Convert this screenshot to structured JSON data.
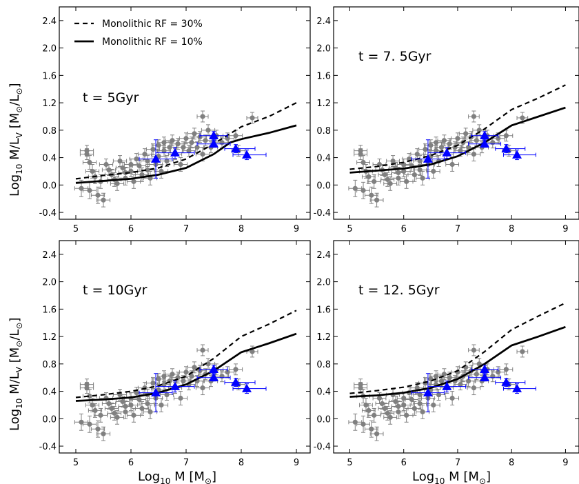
{
  "chart_data": [
    {
      "type": "scatter",
      "annotation": "t = 5Gyr",
      "xlim": [
        4.7,
        9.25
      ],
      "ylim": [
        -0.5,
        2.6
      ],
      "xticks": [
        "5",
        "6",
        "7",
        "8",
        "9"
      ],
      "yticks": [
        "-0.4",
        "0.0",
        "0.4",
        "0.8",
        "1.2",
        "1.6",
        "2.0",
        "2.4"
      ],
      "series": [
        {
          "name": "Monolithic RF = 30%",
          "style": "dashed",
          "color": "#000000",
          "x": [
            5.0,
            5.5,
            6.0,
            6.5,
            7.0,
            7.5,
            8.0,
            8.5,
            9.0
          ],
          "y": [
            0.09,
            0.14,
            0.18,
            0.25,
            0.38,
            0.6,
            0.85,
            1.0,
            1.2
          ]
        },
        {
          "name": "Monolithic RF = 10%",
          "style": "solid",
          "color": "#000000",
          "x": [
            5.0,
            5.5,
            6.0,
            6.5,
            7.0,
            7.5,
            7.8,
            8.0,
            8.5,
            9.0
          ],
          "y": [
            0.03,
            0.06,
            0.09,
            0.15,
            0.25,
            0.45,
            0.62,
            0.67,
            0.76,
            0.87
          ]
        }
      ]
    },
    {
      "type": "scatter",
      "annotation": "t = 7. 5Gyr",
      "xlim": [
        4.7,
        9.25
      ],
      "ylim": [
        -0.5,
        2.6
      ],
      "xticks": [
        "5",
        "6",
        "7",
        "8",
        "9"
      ],
      "yticks": [
        "-0.4",
        "0.0",
        "0.4",
        "0.8",
        "1.2",
        "1.6",
        "2.0",
        "2.4"
      ],
      "series": [
        {
          "name": "Monolithic RF = 30%",
          "style": "dashed",
          "color": "#000000",
          "x": [
            5.0,
            5.5,
            6.0,
            6.5,
            7.0,
            7.5,
            8.0,
            8.5,
            9.0
          ],
          "y": [
            0.23,
            0.27,
            0.33,
            0.43,
            0.58,
            0.82,
            1.1,
            1.27,
            1.46
          ]
        },
        {
          "name": "Monolithic RF = 10%",
          "style": "solid",
          "color": "#000000",
          "x": [
            5.0,
            5.5,
            6.0,
            6.5,
            7.0,
            7.5,
            8.0,
            8.5,
            9.0
          ],
          "y": [
            0.18,
            0.21,
            0.24,
            0.3,
            0.42,
            0.62,
            0.87,
            1.0,
            1.13
          ]
        }
      ]
    },
    {
      "type": "scatter",
      "annotation": "t = 10Gyr",
      "xlim": [
        4.7,
        9.25
      ],
      "ylim": [
        -0.5,
        2.6
      ],
      "xticks": [
        "5",
        "6",
        "7",
        "8",
        "9"
      ],
      "yticks": [
        "-0.4",
        "0.0",
        "0.4",
        "0.8",
        "1.2",
        "1.6",
        "2.0",
        "2.4"
      ],
      "series": [
        {
          "name": "Monolithic RF = 30%",
          "style": "dashed",
          "color": "#000000",
          "x": [
            5.0,
            5.5,
            6.0,
            6.5,
            7.0,
            7.5,
            8.0,
            8.5,
            9.0
          ],
          "y": [
            0.31,
            0.35,
            0.4,
            0.48,
            0.62,
            0.88,
            1.2,
            1.38,
            1.58
          ]
        },
        {
          "name": "Monolithic RF = 10%",
          "style": "solid",
          "color": "#000000",
          "x": [
            5.0,
            5.5,
            6.0,
            6.5,
            7.0,
            7.5,
            8.0,
            8.5,
            9.0
          ],
          "y": [
            0.26,
            0.28,
            0.31,
            0.38,
            0.5,
            0.7,
            0.97,
            1.1,
            1.24
          ]
        }
      ]
    },
    {
      "type": "scatter",
      "annotation": "t = 12. 5Gyr",
      "xlim": [
        4.7,
        9.25
      ],
      "ylim": [
        -0.5,
        2.6
      ],
      "xticks": [
        "5",
        "6",
        "7",
        "8",
        "9"
      ],
      "yticks": [
        "-0.4",
        "0.0",
        "0.4",
        "0.8",
        "1.2",
        "1.6",
        "2.0",
        "2.4"
      ],
      "series": [
        {
          "name": "Monolithic RF = 30%",
          "style": "dashed",
          "color": "#000000",
          "x": [
            5.0,
            5.5,
            6.0,
            6.5,
            7.0,
            7.5,
            8.0,
            8.5,
            9.0
          ],
          "y": [
            0.37,
            0.41,
            0.46,
            0.55,
            0.7,
            0.98,
            1.3,
            1.5,
            1.69
          ]
        },
        {
          "name": "Monolithic RF = 10%",
          "style": "solid",
          "color": "#000000",
          "x": [
            5.0,
            5.5,
            6.0,
            6.5,
            7.0,
            7.5,
            8.0,
            8.5,
            9.0
          ],
          "y": [
            0.32,
            0.34,
            0.38,
            0.45,
            0.58,
            0.8,
            1.07,
            1.2,
            1.34
          ]
        }
      ]
    }
  ],
  "observations": {
    "gray_color": "#808080",
    "blue_color": "#0000ff",
    "gray_points": [
      {
        "x": 5.2,
        "y": 0.5,
        "xerr": 0.12,
        "yerr": 0.08
      },
      {
        "x": 5.2,
        "y": 0.45,
        "xerr": 0.12,
        "yerr": 0.08
      },
      {
        "x": 5.25,
        "y": 0.33,
        "xerr": 0.12,
        "yerr": 0.1
      },
      {
        "x": 5.3,
        "y": 0.2,
        "xerr": 0.12,
        "yerr": 0.1
      },
      {
        "x": 5.35,
        "y": 0.12,
        "xerr": 0.12,
        "yerr": 0.1
      },
      {
        "x": 5.1,
        "y": -0.05,
        "xerr": 0.12,
        "yerr": 0.12
      },
      {
        "x": 5.25,
        "y": -0.08,
        "xerr": 0.12,
        "yerr": 0.12
      },
      {
        "x": 5.4,
        "y": -0.15,
        "xerr": 0.12,
        "yerr": 0.12
      },
      {
        "x": 5.5,
        "y": -0.22,
        "xerr": 0.12,
        "yerr": 0.1
      },
      {
        "x": 5.45,
        "y": 0.05,
        "xerr": 0.12,
        "yerr": 0.1
      },
      {
        "x": 5.55,
        "y": 0.3,
        "xerr": 0.12,
        "yerr": 0.08
      },
      {
        "x": 5.6,
        "y": 0.22,
        "xerr": 0.12,
        "yerr": 0.08
      },
      {
        "x": 5.65,
        "y": 0.15,
        "xerr": 0.12,
        "yerr": 0.08
      },
      {
        "x": 5.7,
        "y": 0.08,
        "xerr": 0.12,
        "yerr": 0.1
      },
      {
        "x": 5.75,
        "y": 0.02,
        "xerr": 0.12,
        "yerr": 0.1
      },
      {
        "x": 5.8,
        "y": 0.35,
        "xerr": 0.12,
        "yerr": 0.08
      },
      {
        "x": 5.85,
        "y": 0.25,
        "xerr": 0.12,
        "yerr": 0.08
      },
      {
        "x": 5.9,
        "y": 0.18,
        "xerr": 0.12,
        "yerr": 0.08
      },
      {
        "x": 5.9,
        "y": 0.1,
        "xerr": 0.12,
        "yerr": 0.1
      },
      {
        "x": 6.0,
        "y": 0.3,
        "xerr": 0.12,
        "yerr": 0.08
      },
      {
        "x": 6.0,
        "y": 0.2,
        "xerr": 0.12,
        "yerr": 0.08
      },
      {
        "x": 6.05,
        "y": 0.05,
        "xerr": 0.12,
        "yerr": 0.1
      },
      {
        "x": 6.1,
        "y": 0.38,
        "xerr": 0.12,
        "yerr": 0.08
      },
      {
        "x": 6.15,
        "y": 0.28,
        "xerr": 0.12,
        "yerr": 0.08
      },
      {
        "x": 6.2,
        "y": 0.15,
        "xerr": 0.12,
        "yerr": 0.1
      },
      {
        "x": 6.25,
        "y": 0.45,
        "xerr": 0.12,
        "yerr": 0.08
      },
      {
        "x": 6.3,
        "y": 0.35,
        "xerr": 0.12,
        "yerr": 0.08
      },
      {
        "x": 6.3,
        "y": 0.22,
        "xerr": 0.12,
        "yerr": 0.08
      },
      {
        "x": 6.35,
        "y": 0.1,
        "xerr": 0.12,
        "yerr": 0.1
      },
      {
        "x": 6.4,
        "y": 0.52,
        "xerr": 0.12,
        "yerr": 0.08
      },
      {
        "x": 6.45,
        "y": 0.3,
        "xerr": 0.12,
        "yerr": 0.08
      },
      {
        "x": 6.5,
        "y": 0.58,
        "xerr": 0.12,
        "yerr": 0.08
      },
      {
        "x": 6.5,
        "y": 0.42,
        "xerr": 0.12,
        "yerr": 0.08
      },
      {
        "x": 6.55,
        "y": 0.2,
        "xerr": 0.12,
        "yerr": 0.1
      },
      {
        "x": 6.6,
        "y": 0.62,
        "xerr": 0.12,
        "yerr": 0.08
      },
      {
        "x": 6.6,
        "y": 0.5,
        "xerr": 0.12,
        "yerr": 0.08
      },
      {
        "x": 6.65,
        "y": 0.35,
        "xerr": 0.12,
        "yerr": 0.08
      },
      {
        "x": 6.7,
        "y": 0.55,
        "xerr": 0.12,
        "yerr": 0.08
      },
      {
        "x": 6.75,
        "y": 0.65,
        "xerr": 0.12,
        "yerr": 0.08
      },
      {
        "x": 6.8,
        "y": 0.45,
        "xerr": 0.12,
        "yerr": 0.08
      },
      {
        "x": 6.85,
        "y": 0.6,
        "xerr": 0.12,
        "yerr": 0.08
      },
      {
        "x": 6.9,
        "y": 0.3,
        "xerr": 0.12,
        "yerr": 0.1
      },
      {
        "x": 6.95,
        "y": 0.55,
        "xerr": 0.12,
        "yerr": 0.08
      },
      {
        "x": 7.0,
        "y": 0.68,
        "xerr": 0.12,
        "yerr": 0.08
      },
      {
        "x": 7.05,
        "y": 0.5,
        "xerr": 0.12,
        "yerr": 0.08
      },
      {
        "x": 7.1,
        "y": 0.62,
        "xerr": 0.12,
        "yerr": 0.08
      },
      {
        "x": 7.15,
        "y": 0.75,
        "xerr": 0.12,
        "yerr": 0.08
      },
      {
        "x": 7.2,
        "y": 0.55,
        "xerr": 0.12,
        "yerr": 0.08
      },
      {
        "x": 7.25,
        "y": 0.7,
        "xerr": 0.12,
        "yerr": 0.08
      },
      {
        "x": 7.3,
        "y": 0.45,
        "xerr": 0.12,
        "yerr": 0.1
      },
      {
        "x": 7.35,
        "y": 0.65,
        "xerr": 0.12,
        "yerr": 0.08
      },
      {
        "x": 7.4,
        "y": 0.8,
        "xerr": 0.12,
        "yerr": 0.08
      },
      {
        "x": 7.3,
        "y": 1.0,
        "xerr": 0.1,
        "yerr": 0.08
      },
      {
        "x": 7.45,
        "y": 0.55,
        "xerr": 0.12,
        "yerr": 0.08
      },
      {
        "x": 7.55,
        "y": 0.72,
        "xerr": 0.12,
        "yerr": 0.08
      },
      {
        "x": 7.65,
        "y": 0.62,
        "xerr": 0.12,
        "yerr": 0.08
      },
      {
        "x": 7.75,
        "y": 0.68,
        "xerr": 0.12,
        "yerr": 0.08
      },
      {
        "x": 7.9,
        "y": 0.72,
        "xerr": 0.12,
        "yerr": 0.08
      },
      {
        "x": 7.95,
        "y": 0.5,
        "xerr": 0.12,
        "yerr": 0.08
      },
      {
        "x": 8.2,
        "y": 0.98,
        "xerr": 0.1,
        "yerr": 0.08
      }
    ],
    "blue_points": [
      {
        "x": 6.45,
        "y": 0.38,
        "xerr_lo": 0.3,
        "xerr_hi": 0.3,
        "yerr": 0.28
      },
      {
        "x": 6.8,
        "y": 0.47,
        "xerr_lo": 0.35,
        "xerr_hi": 0.35,
        "yerr": 0.08
      },
      {
        "x": 7.5,
        "y": 0.72,
        "xerr_lo": 0.25,
        "xerr_hi": 0.25,
        "yerr": 0.06
      },
      {
        "x": 7.5,
        "y": 0.6,
        "xerr_lo": 0.3,
        "xerr_hi": 0.3,
        "yerr": 0.05
      },
      {
        "x": 7.9,
        "y": 0.53,
        "xerr_lo": 0.2,
        "xerr_hi": 0.35,
        "yerr": 0.06
      },
      {
        "x": 8.1,
        "y": 0.44,
        "xerr_lo": 0.25,
        "xerr_hi": 0.35,
        "yerr": 0.07
      }
    ]
  },
  "axes_labels": {
    "ylabel_main": "Log",
    "ylabel_sub": "10",
    "ylabel_rest": " M/L",
    "ylabel_v": "V",
    "ylabel_unit": " [M",
    "ylabel_sun1": "⊙",
    "ylabel_slash": "/L",
    "ylabel_sun2": "⊙",
    "ylabel_close": "]",
    "xlabel_main": "Log",
    "xlabel_sub": "10",
    "xlabel_rest": " M  [M",
    "xlabel_sun": "⊙",
    "xlabel_close": "]"
  },
  "legend": {
    "dashed_label": "Monolithic RF = 30%",
    "solid_label": "Monolithic RF = 10%"
  }
}
